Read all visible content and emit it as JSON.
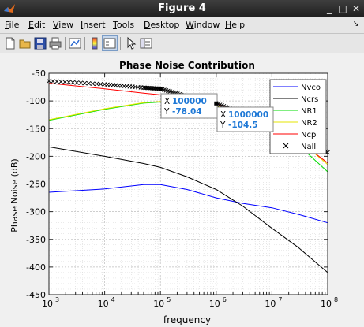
{
  "window": {
    "title": "Figure 4"
  },
  "menu": {
    "items": [
      {
        "key": "F",
        "rest": "ile"
      },
      {
        "key": "E",
        "rest": "dit"
      },
      {
        "key": "V",
        "rest": "iew"
      },
      {
        "key": "I",
        "rest": "nsert"
      },
      {
        "key": "T",
        "rest": "ools"
      },
      {
        "key": "D",
        "rest": "esktop"
      },
      {
        "key": "W",
        "rest": "indow"
      },
      {
        "key": "H",
        "rest": "elp"
      }
    ],
    "overflow_glyph": "↘"
  },
  "toolbar": {
    "icons": [
      "new-figure-icon",
      "open-file-icon",
      "save-icon",
      "print-icon",
      "link-plot-icon",
      "colorbar-icon",
      "legend-icon",
      "pointer-icon",
      "property-editor-icon"
    ]
  },
  "chart_data": {
    "type": "line",
    "title": "Phase Noise Contribution",
    "xlabel": "frequency",
    "ylabel": "Phase Noise (dB)",
    "xscale": "log",
    "xlim": [
      1000,
      100000000
    ],
    "ylim": [
      -450,
      -50
    ],
    "grid": true,
    "minor_grid": true,
    "x_tick_labels": [
      {
        "base": "10",
        "exp": "3"
      },
      {
        "base": "10",
        "exp": "4"
      },
      {
        "base": "10",
        "exp": "5"
      },
      {
        "base": "10",
        "exp": "6"
      },
      {
        "base": "10",
        "exp": "7"
      },
      {
        "base": "10",
        "exp": "8"
      }
    ],
    "x_ticks": [
      1000,
      10000,
      100000,
      1000000,
      10000000,
      100000000
    ],
    "y_ticks": [
      -50,
      -100,
      -150,
      -200,
      -250,
      -300,
      -350,
      -400,
      -450
    ],
    "legend_position": "top-right",
    "series": [
      {
        "name": "Nvco",
        "color": "#0000ff",
        "style": "line",
        "x": [
          1000,
          10000,
          50000,
          100000,
          300000,
          1000000,
          3000000,
          10000000,
          30000000,
          100000000
        ],
        "y": [
          -265,
          -259,
          -251,
          -251,
          -260,
          -275,
          -285,
          -293,
          -305,
          -320
        ]
      },
      {
        "name": "Ncrs",
        "color": "#000000",
        "style": "line",
        "x": [
          1000,
          10000,
          50000,
          100000,
          300000,
          1000000,
          3000000,
          10000000,
          30000000,
          100000000
        ],
        "y": [
          -183,
          -200,
          -213,
          -220,
          -237,
          -260,
          -290,
          -330,
          -365,
          -410
        ]
      },
      {
        "name": "NR1",
        "color": "#00dd00",
        "style": "line",
        "x": [
          1000,
          10000,
          50000,
          100000,
          300000,
          1000000,
          3000000,
          10000000,
          30000000,
          100000000
        ],
        "y": [
          -135,
          -115,
          -104,
          -102,
          -103,
          -110,
          -125,
          -150,
          -180,
          -228
        ]
      },
      {
        "name": "NR2",
        "color": "#e6e600",
        "style": "line",
        "x": [
          1000,
          10000,
          50000,
          100000,
          300000,
          1000000,
          3000000,
          10000000,
          30000000,
          100000000
        ],
        "y": [
          -134,
          -114,
          -103,
          -101,
          -102,
          -109,
          -122,
          -144,
          -170,
          -215
        ]
      },
      {
        "name": "Ncp",
        "color": "#ff0000",
        "style": "line",
        "x": [
          1000,
          10000,
          50000,
          100000,
          300000,
          1000000,
          3000000,
          10000000,
          30000000,
          100000000
        ],
        "y": [
          -68,
          -78,
          -86,
          -89,
          -95,
          -105,
          -123,
          -148,
          -172,
          -212
        ]
      },
      {
        "name": "Nall",
        "color": "#000000",
        "style": "marker-x",
        "x": [
          1000,
          10000,
          50000,
          100000,
          300000,
          1000000,
          3000000,
          10000000,
          30000000,
          100000000
        ],
        "y": [
          -64,
          -70,
          -76,
          -78,
          -92,
          -104.5,
          -122,
          -148,
          -170,
          -193
        ]
      }
    ],
    "datatips": [
      {
        "x_label": "X",
        "x_value": "100000",
        "y_label": "Y",
        "y_value": "-78.04",
        "x": 100000,
        "y": -78.04
      },
      {
        "x_label": "X",
        "x_value": "1000000",
        "y_label": "Y",
        "y_value": "-104.5",
        "x": 1000000,
        "y": -104.5
      }
    ]
  }
}
